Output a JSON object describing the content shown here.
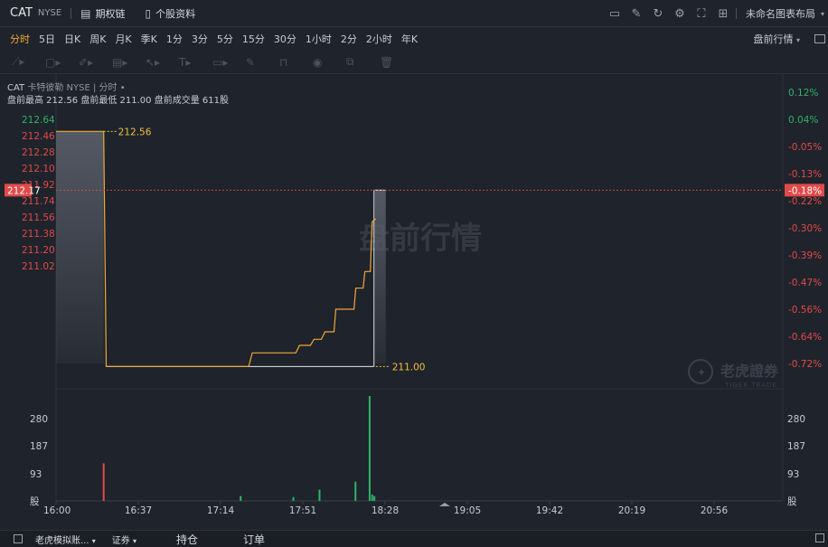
{
  "header": {
    "symbol": "CAT",
    "exchange": "NYSE",
    "options_chain": "期权链",
    "stock_profile": "个股资料",
    "layout_name": "未命名图表布局",
    "tool_icons": [
      "monitor-chart-icon",
      "edit-icon",
      "refresh-icon",
      "gear-icon",
      "fullscreen-icon",
      "grid-icon"
    ]
  },
  "periods": [
    "分时",
    "5日",
    "日K",
    "周K",
    "月K",
    "季K",
    "1分",
    "3分",
    "5分",
    "15分",
    "30分",
    "1小时",
    "2分",
    "2小时",
    "年K"
  ],
  "market_button": "盘前行情",
  "draw_tools": [
    "trend-line-icon",
    "rectangle-icon",
    "brush-icon",
    "pattern-icon",
    "cursor-icon",
    "text-icon",
    "ruler-icon",
    "pencil-icon",
    "lock-icon",
    "eye-icon",
    "magnet-icon",
    "trash-icon"
  ],
  "legend": {
    "title": "CAT",
    "name": "卡特彼勒",
    "exchange": "NYSE",
    "period": "分时",
    "stats": "盘前最高 212.56 盘前最低 211.00 盘前成交量 611股"
  },
  "watermark": "盘前行情",
  "brand": {
    "name": "老虎證券",
    "sub": "TIGER TRADE"
  },
  "current_price": "212.17",
  "current_pct": "-0.18%",
  "chart_data": {
    "type": "line",
    "price_axis": [
      "212.64",
      "212.46",
      "212.28",
      "212.10",
      "211.92",
      "211.74",
      "211.56",
      "211.38",
      "211.20",
      "211.02"
    ],
    "pct_axis": [
      "0.12%",
      "0.04%",
      "-0.05%",
      "-0.13%",
      "-0.22%",
      "-0.30%",
      "-0.39%",
      "-0.47%",
      "-0.56%",
      "-0.64%",
      "-0.72%"
    ],
    "volume_axis": [
      "280",
      "187",
      "93",
      "股"
    ],
    "time_axis": [
      "16:00",
      "16:37",
      "17:14",
      "17:51",
      "18:28",
      "19:05",
      "19:42",
      "20:19",
      "20:56"
    ],
    "high_label": "212.56",
    "low_label": "211.00",
    "price_range": [
      211.02,
      212.64
    ],
    "pct_range": [
      -0.72,
      0.12
    ],
    "volume_range": [
      0,
      327
    ],
    "price_series": [
      {
        "t": 0,
        "v": 212.56
      },
      {
        "t": 13.1,
        "v": 212.56
      },
      {
        "t": 13.8,
        "v": 211.0
      },
      {
        "t": 53,
        "v": 211.0
      },
      {
        "t": 54,
        "v": 211.09
      },
      {
        "t": 66,
        "v": 211.09
      },
      {
        "t": 67,
        "v": 211.14
      },
      {
        "t": 70,
        "v": 211.14
      },
      {
        "t": 71,
        "v": 211.18
      },
      {
        "t": 73,
        "v": 211.18
      },
      {
        "t": 74,
        "v": 211.23
      },
      {
        "t": 76.5,
        "v": 211.23
      },
      {
        "t": 77,
        "v": 211.38
      },
      {
        "t": 82,
        "v": 211.38
      },
      {
        "t": 82.5,
        "v": 211.52
      },
      {
        "t": 84.5,
        "v": 211.52
      },
      {
        "t": 85,
        "v": 211.63
      },
      {
        "t": 86.5,
        "v": 211.63
      },
      {
        "t": 87,
        "v": 211.96
      },
      {
        "t": 88,
        "v": 211.98
      }
    ],
    "volume_bars": [
      {
        "t": 13.1,
        "v": 117,
        "dir": "down"
      },
      {
        "t": 50.8,
        "v": 15,
        "dir": "up"
      },
      {
        "t": 65.3,
        "v": 12,
        "dir": "up"
      },
      {
        "t": 72.5,
        "v": 35,
        "dir": "up"
      },
      {
        "t": 82.4,
        "v": 60,
        "dir": "up"
      },
      {
        "t": 86.3,
        "v": 327,
        "dir": "up"
      },
      {
        "t": 87.0,
        "v": 20,
        "dir": "up"
      },
      {
        "t": 87.6,
        "v": 15,
        "dir": "up"
      }
    ],
    "colors": {
      "up": "#2fb36a",
      "down": "#e04a4a",
      "line": "#f0a93a",
      "text_up": "#2fb36a",
      "text_down": "#e04a4a"
    }
  },
  "bottom": {
    "account": "老虎模拟账...",
    "type": "证券",
    "tab_positions": "持仓",
    "tab_orders": "订单"
  }
}
